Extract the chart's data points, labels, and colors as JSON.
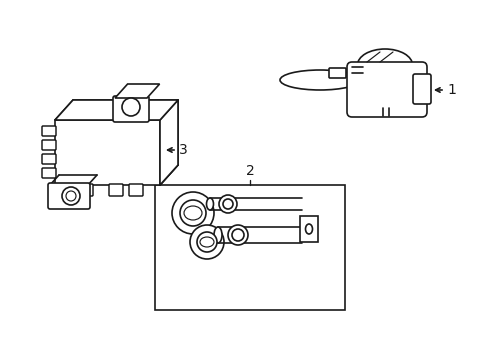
{
  "background_color": "#ffffff",
  "line_color": "#1a1a1a",
  "line_width": 1.2,
  "label_1": "1",
  "label_2": "2",
  "label_3": "3",
  "label_fontsize": 10,
  "figsize": [
    4.89,
    3.6
  ],
  "dpi": 100
}
